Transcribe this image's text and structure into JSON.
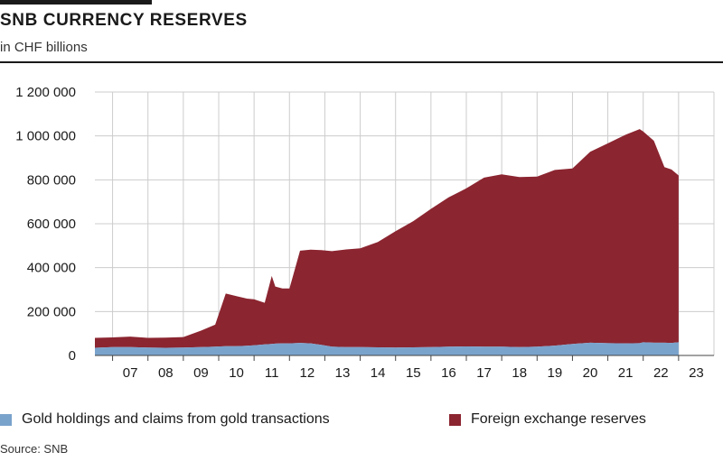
{
  "header": {
    "title": "SNB CURRENCY RESERVES",
    "subtitle": "in CHF billions"
  },
  "legend": {
    "gold_label": "Gold holdings and claims from gold transactions",
    "fx_label": "Foreign exchange reserves"
  },
  "source": "Source: SNB",
  "colors": {
    "gold": "#7aa3cc",
    "fx": "#8b2530",
    "grid": "#cccccc"
  },
  "chart_data": {
    "type": "area",
    "stacked": true,
    "title": "SNB CURRENCY RESERVES",
    "subtitle": "in CHF billions",
    "ylim": [
      0,
      1200000
    ],
    "yticks": [
      0,
      200000,
      400000,
      600000,
      800000,
      1000000,
      1200000
    ],
    "ytick_labels": [
      "0",
      "200 000",
      "400 000",
      "600 000",
      "800 000",
      "1 000 000",
      "1 200 000"
    ],
    "xlim": [
      2006.5,
      2024
    ],
    "xticks": [
      2007,
      2008,
      2009,
      2010,
      2011,
      2012,
      2013,
      2014,
      2015,
      2016,
      2017,
      2018,
      2019,
      2020,
      2021,
      2022,
      2023
    ],
    "xtick_labels": [
      "07",
      "08",
      "09",
      "10",
      "11",
      "12",
      "13",
      "14",
      "15",
      "16",
      "17",
      "18",
      "19",
      "20",
      "21",
      "22",
      "23"
    ],
    "grid": true,
    "legend_position": "bottom",
    "x": [
      2006.5,
      2007.0,
      2007.5,
      2008.0,
      2008.5,
      2009.0,
      2009.5,
      2009.9,
      2010.2,
      2010.5,
      2010.8,
      2011.0,
      2011.3,
      2011.5,
      2011.6,
      2011.8,
      2012.0,
      2012.3,
      2012.6,
      2012.9,
      2013.2,
      2013.6,
      2014.0,
      2014.5,
      2015.0,
      2015.5,
      2016.0,
      2016.5,
      2017.0,
      2017.5,
      2018.0,
      2018.5,
      2019.0,
      2019.5,
      2020.0,
      2020.5,
      2021.0,
      2021.5,
      2021.9,
      2022.0,
      2022.3,
      2022.6,
      2022.8,
      2023.0
    ],
    "series": [
      {
        "name": "Gold holdings and claims from gold transactions",
        "values": [
          35000,
          38000,
          38000,
          36000,
          35000,
          36000,
          38000,
          40000,
          42000,
          42000,
          44000,
          46000,
          50000,
          52000,
          54000,
          55000,
          55000,
          57000,
          55000,
          48000,
          40000,
          38000,
          38000,
          37000,
          36000,
          37000,
          38000,
          40000,
          41000,
          40000,
          40000,
          38000,
          40000,
          45000,
          52000,
          58000,
          56000,
          55000,
          56000,
          60000,
          58000,
          58000,
          57000,
          60000
        ]
      },
      {
        "name": "Foreign exchange reserves",
        "values": [
          45000,
          44000,
          48000,
          44000,
          46000,
          48000,
          75000,
          100000,
          240000,
          228000,
          215000,
          210000,
          190000,
          310000,
          260000,
          250000,
          250000,
          420000,
          427000,
          432000,
          435000,
          445000,
          450000,
          480000,
          530000,
          575000,
          630000,
          680000,
          720000,
          770000,
          785000,
          775000,
          775000,
          800000,
          800000,
          870000,
          910000,
          950000,
          975000,
          960000,
          920000,
          800000,
          790000,
          760000
        ]
      }
    ]
  }
}
